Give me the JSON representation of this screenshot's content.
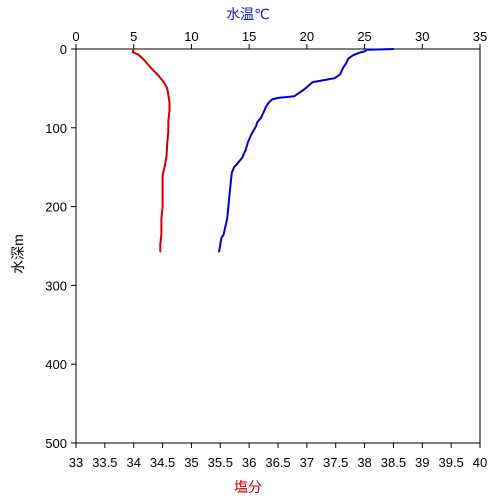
{
  "chart_data": {
    "type": "line",
    "top_axis": {
      "label": "水温℃",
      "color": "#1a1acc",
      "range": [
        0,
        35
      ],
      "ticks": [
        0,
        5,
        10,
        15,
        20,
        25,
        30,
        35
      ],
      "tick_labels": [
        "0",
        "5",
        "10",
        "15",
        "20",
        "25",
        "30",
        "35"
      ]
    },
    "bottom_axis": {
      "label": "塩分",
      "color": "#cc0000",
      "range": [
        33,
        40
      ],
      "ticks": [
        33,
        33.5,
        34,
        34.5,
        35,
        35.5,
        36,
        36.5,
        37,
        37.5,
        38,
        38.5,
        39,
        39.5,
        40
      ],
      "tick_labels": [
        "33",
        "33.5",
        "34",
        "34.5",
        "35",
        "35.5",
        "36",
        "36.5",
        "37",
        "37.5",
        "38",
        "38.5",
        "39",
        "39.5",
        "40"
      ]
    },
    "y_axis": {
      "label": "水深m",
      "range": [
        0,
        500
      ],
      "inverted": true,
      "ticks": [
        0,
        100,
        200,
        300,
        400,
        500
      ],
      "tick_labels": [
        "0",
        "100",
        "200",
        "300",
        "400",
        "500"
      ]
    },
    "grid": false,
    "series": [
      {
        "axis": "top",
        "color": "#0000cc",
        "points": [
          [
            27.5,
            0
          ],
          [
            25.2,
            1
          ],
          [
            25.0,
            3
          ],
          [
            24.5,
            5
          ],
          [
            24.0,
            8
          ],
          [
            23.6,
            12
          ],
          [
            23.4,
            18
          ],
          [
            23.1,
            25
          ],
          [
            22.9,
            32
          ],
          [
            22.4,
            37
          ],
          [
            21.3,
            40
          ],
          [
            20.5,
            42
          ],
          [
            20.2,
            46
          ],
          [
            19.7,
            52
          ],
          [
            19.3,
            56
          ],
          [
            18.9,
            60
          ],
          [
            18.2,
            61
          ],
          [
            17.5,
            62
          ],
          [
            17.0,
            64
          ],
          [
            16.7,
            68
          ],
          [
            16.5,
            72
          ],
          [
            16.2,
            82
          ],
          [
            16.0,
            88
          ],
          [
            15.7,
            93
          ],
          [
            15.6,
            98
          ],
          [
            15.2,
            108
          ],
          [
            14.9,
            118
          ],
          [
            14.7,
            128
          ],
          [
            14.4,
            138
          ],
          [
            14.0,
            145
          ],
          [
            13.7,
            150
          ],
          [
            13.5,
            157
          ],
          [
            13.4,
            170
          ],
          [
            13.3,
            185
          ],
          [
            13.2,
            200
          ],
          [
            13.1,
            215
          ],
          [
            12.9,
            228
          ],
          [
            12.8,
            235
          ],
          [
            12.6,
            240
          ],
          [
            12.5,
            248
          ],
          [
            12.4,
            257
          ]
        ]
      },
      {
        "axis": "bottom",
        "color": "#cc0000",
        "points": [
          [
            34.0,
            0
          ],
          [
            33.98,
            4
          ],
          [
            34.08,
            7
          ],
          [
            34.18,
            14
          ],
          [
            34.3,
            24
          ],
          [
            34.42,
            33
          ],
          [
            34.52,
            42
          ],
          [
            34.58,
            50
          ],
          [
            34.6,
            58
          ],
          [
            34.62,
            68
          ],
          [
            34.62,
            78
          ],
          [
            34.6,
            92
          ],
          [
            34.6,
            105
          ],
          [
            34.58,
            120
          ],
          [
            34.57,
            135
          ],
          [
            34.54,
            148
          ],
          [
            34.5,
            160
          ],
          [
            34.5,
            180
          ],
          [
            34.5,
            200
          ],
          [
            34.48,
            215
          ],
          [
            34.48,
            235
          ],
          [
            34.46,
            248
          ],
          [
            34.46,
            257
          ]
        ]
      }
    ]
  }
}
